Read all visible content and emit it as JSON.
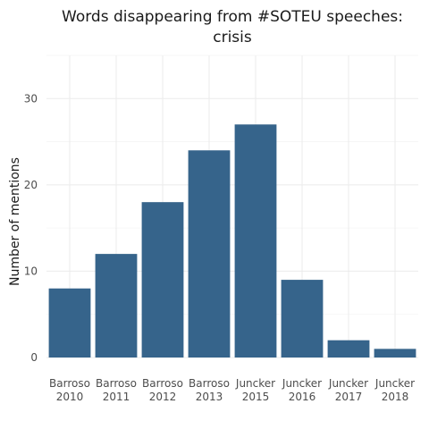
{
  "chart_data": {
    "type": "bar",
    "title": "Words disappearing from #SOTEU speeches:",
    "subtitle": "crisis",
    "xlabel": "",
    "ylabel": "Number of mentions",
    "categories": [
      [
        "Barroso",
        "2010"
      ],
      [
        "Barroso",
        "2011"
      ],
      [
        "Barroso",
        "2012"
      ],
      [
        "Barroso",
        "2013"
      ],
      [
        "Juncker",
        "2015"
      ],
      [
        "Juncker",
        "2016"
      ],
      [
        "Juncker",
        "2017"
      ],
      [
        "Juncker",
        "2018"
      ]
    ],
    "values": [
      8,
      12,
      18,
      24,
      27,
      9,
      2,
      1
    ],
    "ylim": [
      0,
      35
    ],
    "yticks": [
      0,
      10,
      20,
      30
    ],
    "grid": true,
    "legend": "none",
    "bar_color": "#36648b"
  }
}
